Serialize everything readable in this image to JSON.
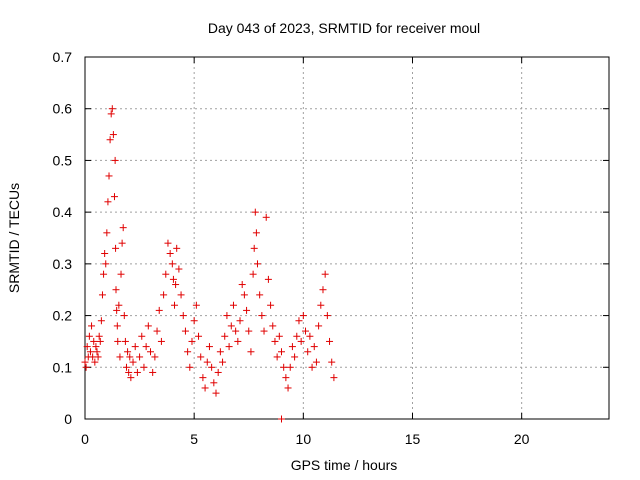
{
  "chart_data": {
    "type": "scatter",
    "title": "Day 043 of 2023, SRMTID for receiver moul",
    "xlabel": "GPS time / hours",
    "ylabel": "SRMTID / TECUs",
    "xlim": [
      0,
      24
    ],
    "ylim": [
      0,
      0.7
    ],
    "x_ticks": [
      0,
      5,
      10,
      15,
      20
    ],
    "y_ticks": [
      0,
      0.1,
      0.2,
      0.3,
      0.4,
      0.5,
      0.6,
      0.7
    ],
    "x_tick_labels": [
      "0",
      "5",
      "10",
      "15",
      "20"
    ],
    "y_tick_labels": [
      "0",
      "0.1",
      "0.2",
      "0.3",
      "0.4",
      "0.5",
      "0.6",
      "0.7"
    ],
    "grid": true,
    "marker": "plus",
    "color": "#e00000",
    "series": [
      {
        "name": "SRMTID",
        "x": [
          0.0,
          0.05,
          0.1,
          0.15,
          0.2,
          0.25,
          0.3,
          0.35,
          0.4,
          0.45,
          0.5,
          0.55,
          0.6,
          0.65,
          0.7,
          0.75,
          0.8,
          0.85,
          0.9,
          0.95,
          1.0,
          1.05,
          1.1,
          1.15,
          1.2,
          1.25,
          1.3,
          1.35,
          1.38,
          1.4,
          1.42,
          1.45,
          1.48,
          1.5,
          1.55,
          1.6,
          1.65,
          1.7,
          1.75,
          1.8,
          1.85,
          1.9,
          1.95,
          2.0,
          2.05,
          2.1,
          2.2,
          2.3,
          2.4,
          2.5,
          2.6,
          2.7,
          2.8,
          2.9,
          3.0,
          3.1,
          3.2,
          3.3,
          3.4,
          3.5,
          3.6,
          3.7,
          3.8,
          3.9,
          4.0,
          4.05,
          4.1,
          4.15,
          4.2,
          4.3,
          4.4,
          4.5,
          4.6,
          4.7,
          4.8,
          4.9,
          5.0,
          5.1,
          5.2,
          5.3,
          5.4,
          5.5,
          5.6,
          5.7,
          5.8,
          5.9,
          6.0,
          6.1,
          6.2,
          6.3,
          6.4,
          6.5,
          6.6,
          6.7,
          6.8,
          6.9,
          7.0,
          7.1,
          7.2,
          7.3,
          7.4,
          7.5,
          7.6,
          7.7,
          7.75,
          7.8,
          7.85,
          7.9,
          8.0,
          8.1,
          8.2,
          8.3,
          8.4,
          8.5,
          8.6,
          8.7,
          8.8,
          8.9,
          9.0,
          9.1,
          9.2,
          9.3,
          9.4,
          9.5,
          9.6,
          9.7,
          9.8,
          9.9,
          10.0,
          10.1,
          10.2,
          10.3,
          10.4,
          10.5,
          10.6,
          10.7,
          10.8,
          10.9,
          11.0,
          11.1,
          11.2,
          11.3,
          11.4,
          9.0
        ],
        "y": [
          0.11,
          0.1,
          0.14,
          0.12,
          0.16,
          0.13,
          0.18,
          0.12,
          0.15,
          0.11,
          0.14,
          0.13,
          0.12,
          0.16,
          0.15,
          0.19,
          0.24,
          0.28,
          0.32,
          0.3,
          0.36,
          0.42,
          0.47,
          0.54,
          0.59,
          0.6,
          0.55,
          0.43,
          0.5,
          0.33,
          0.25,
          0.21,
          0.18,
          0.15,
          0.22,
          0.12,
          0.28,
          0.34,
          0.37,
          0.2,
          0.15,
          0.1,
          0.13,
          0.09,
          0.12,
          0.08,
          0.11,
          0.14,
          0.09,
          0.12,
          0.16,
          0.1,
          0.14,
          0.18,
          0.13,
          0.09,
          0.12,
          0.17,
          0.21,
          0.15,
          0.24,
          0.28,
          0.34,
          0.32,
          0.3,
          0.27,
          0.22,
          0.26,
          0.33,
          0.29,
          0.24,
          0.2,
          0.17,
          0.13,
          0.1,
          0.15,
          0.19,
          0.22,
          0.16,
          0.12,
          0.08,
          0.06,
          0.11,
          0.14,
          0.1,
          0.07,
          0.05,
          0.09,
          0.13,
          0.11,
          0.16,
          0.2,
          0.14,
          0.18,
          0.22,
          0.17,
          0.15,
          0.19,
          0.26,
          0.24,
          0.21,
          0.17,
          0.13,
          0.28,
          0.33,
          0.4,
          0.36,
          0.3,
          0.24,
          0.2,
          0.17,
          0.39,
          0.27,
          0.22,
          0.18,
          0.15,
          0.12,
          0.16,
          0.13,
          0.1,
          0.08,
          0.06,
          0.1,
          0.14,
          0.12,
          0.16,
          0.19,
          0.15,
          0.2,
          0.17,
          0.13,
          0.16,
          0.1,
          0.14,
          0.11,
          0.18,
          0.22,
          0.25,
          0.28,
          0.2,
          0.15,
          0.11,
          0.08,
          0.0
        ]
      }
    ]
  }
}
